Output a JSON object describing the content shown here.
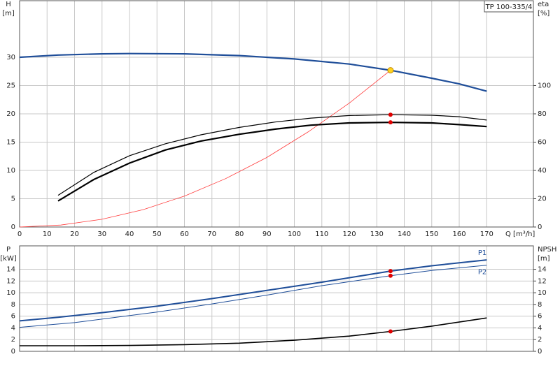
{
  "chart_data": [
    {
      "type": "line",
      "title": "TP 100-335/4",
      "ylabel": "H",
      "yunit": "[m]",
      "y2label": "eta",
      "y2unit": "[%]",
      "xlabel": "Q [m³/h]",
      "xlim": [
        0,
        187
      ],
      "xticks": [
        0,
        10,
        20,
        30,
        40,
        50,
        60,
        70,
        80,
        90,
        100,
        110,
        120,
        130,
        140,
        150,
        160,
        170
      ],
      "ylim": [
        0,
        40
      ],
      "yticks": [
        0,
        5,
        10,
        15,
        20,
        25,
        30
      ],
      "y2lim": [
        0,
        160
      ],
      "y2ticks": [
        0,
        20,
        40,
        60,
        80,
        100
      ],
      "grid": true,
      "series": [
        {
          "color": "#1f4e99",
          "width": 2.2,
          "x": [
            0,
            14,
            30,
            40,
            60,
            80,
            100,
            120,
            135,
            150,
            160,
            170
          ],
          "values": [
            30,
            30.4,
            30.6,
            30.65,
            30.6,
            30.3,
            29.7,
            28.8,
            27.7,
            26.3,
            25.3,
            24.0
          ]
        },
        {
          "color": "#ff3b3b",
          "width": 0.8,
          "x": [
            0,
            15,
            30,
            45,
            60,
            75,
            90,
            105,
            120,
            135
          ],
          "values": [
            0,
            0.34,
            1.37,
            3.08,
            5.47,
            8.55,
            12.3,
            16.8,
            21.9,
            27.7
          ]
        },
        {
          "color": "#000000",
          "width": 1.2,
          "axis": "y2",
          "x": [
            14,
            27,
            40,
            53,
            66,
            80,
            93,
            106,
            120,
            135,
            150,
            160,
            170
          ],
          "values": [
            22.4,
            38.6,
            50.4,
            58.8,
            65.2,
            70.4,
            74.2,
            77,
            78.8,
            79.4,
            79,
            78,
            75.6
          ]
        },
        {
          "color": "#000000",
          "width": 2.2,
          "axis": "y2",
          "x": [
            14,
            27,
            40,
            53,
            66,
            80,
            93,
            106,
            120,
            135,
            150,
            160,
            170
          ],
          "values": [
            18.4,
            33.6,
            45.2,
            54.4,
            60.8,
            65.6,
            69.2,
            72,
            73.6,
            74,
            73.6,
            72.4,
            71
          ]
        }
      ],
      "markers": [
        {
          "x": 135,
          "y": 27.7,
          "color": "#ffd21f"
        },
        {
          "x": 135,
          "y": 79.4,
          "axis": "y2",
          "color": "#e00000"
        },
        {
          "x": 135,
          "y": 74,
          "axis": "y2",
          "color": "#e00000"
        }
      ]
    },
    {
      "type": "line",
      "ylabel": "P",
      "yunit": "[kW]",
      "y2label": "NPSH",
      "y2unit": "[m]",
      "xlim": [
        0,
        187
      ],
      "xticks": [
        0,
        10,
        20,
        30,
        40,
        50,
        60,
        70,
        80,
        90,
        100,
        110,
        120,
        130,
        140,
        150,
        160,
        170
      ],
      "ylim": [
        0,
        18
      ],
      "yticks": [
        0,
        2,
        4,
        6,
        8,
        10,
        12,
        14
      ],
      "y2lim": [
        0,
        18
      ],
      "y2ticks": [
        0,
        2,
        4,
        6,
        8,
        10,
        12,
        14
      ],
      "grid": true,
      "series": [
        {
          "name": "P1",
          "color": "#1f4e99",
          "width": 2,
          "x": [
            0,
            14,
            30,
            50,
            70,
            90,
            110,
            135,
            150,
            170
          ],
          "values": [
            5.2,
            5.8,
            6.6,
            7.7,
            9.0,
            10.4,
            11.8,
            13.7,
            14.6,
            15.6
          ]
        },
        {
          "name": "P2",
          "color": "#1f4e99",
          "width": 1,
          "x": [
            0,
            20,
            50,
            70,
            90,
            110,
            135,
            150,
            170
          ],
          "values": [
            4.1,
            4.9,
            6.7,
            8.1,
            9.6,
            11.2,
            12.9,
            13.8,
            14.7
          ]
        },
        {
          "color": "#000000",
          "width": 1.6,
          "axis": "y2",
          "x": [
            0,
            20,
            40,
            60,
            80,
            100,
            120,
            135,
            150,
            170
          ],
          "values": [
            0.95,
            0.95,
            1.0,
            1.15,
            1.4,
            1.9,
            2.6,
            3.4,
            4.3,
            5.7
          ]
        }
      ],
      "markers": [
        {
          "x": 135,
          "y": 13.7,
          "color": "#e00000"
        },
        {
          "x": 135,
          "y": 12.9,
          "color": "#e00000"
        },
        {
          "x": 135,
          "y": 3.4,
          "axis": "y2",
          "color": "#e00000"
        }
      ]
    }
  ]
}
